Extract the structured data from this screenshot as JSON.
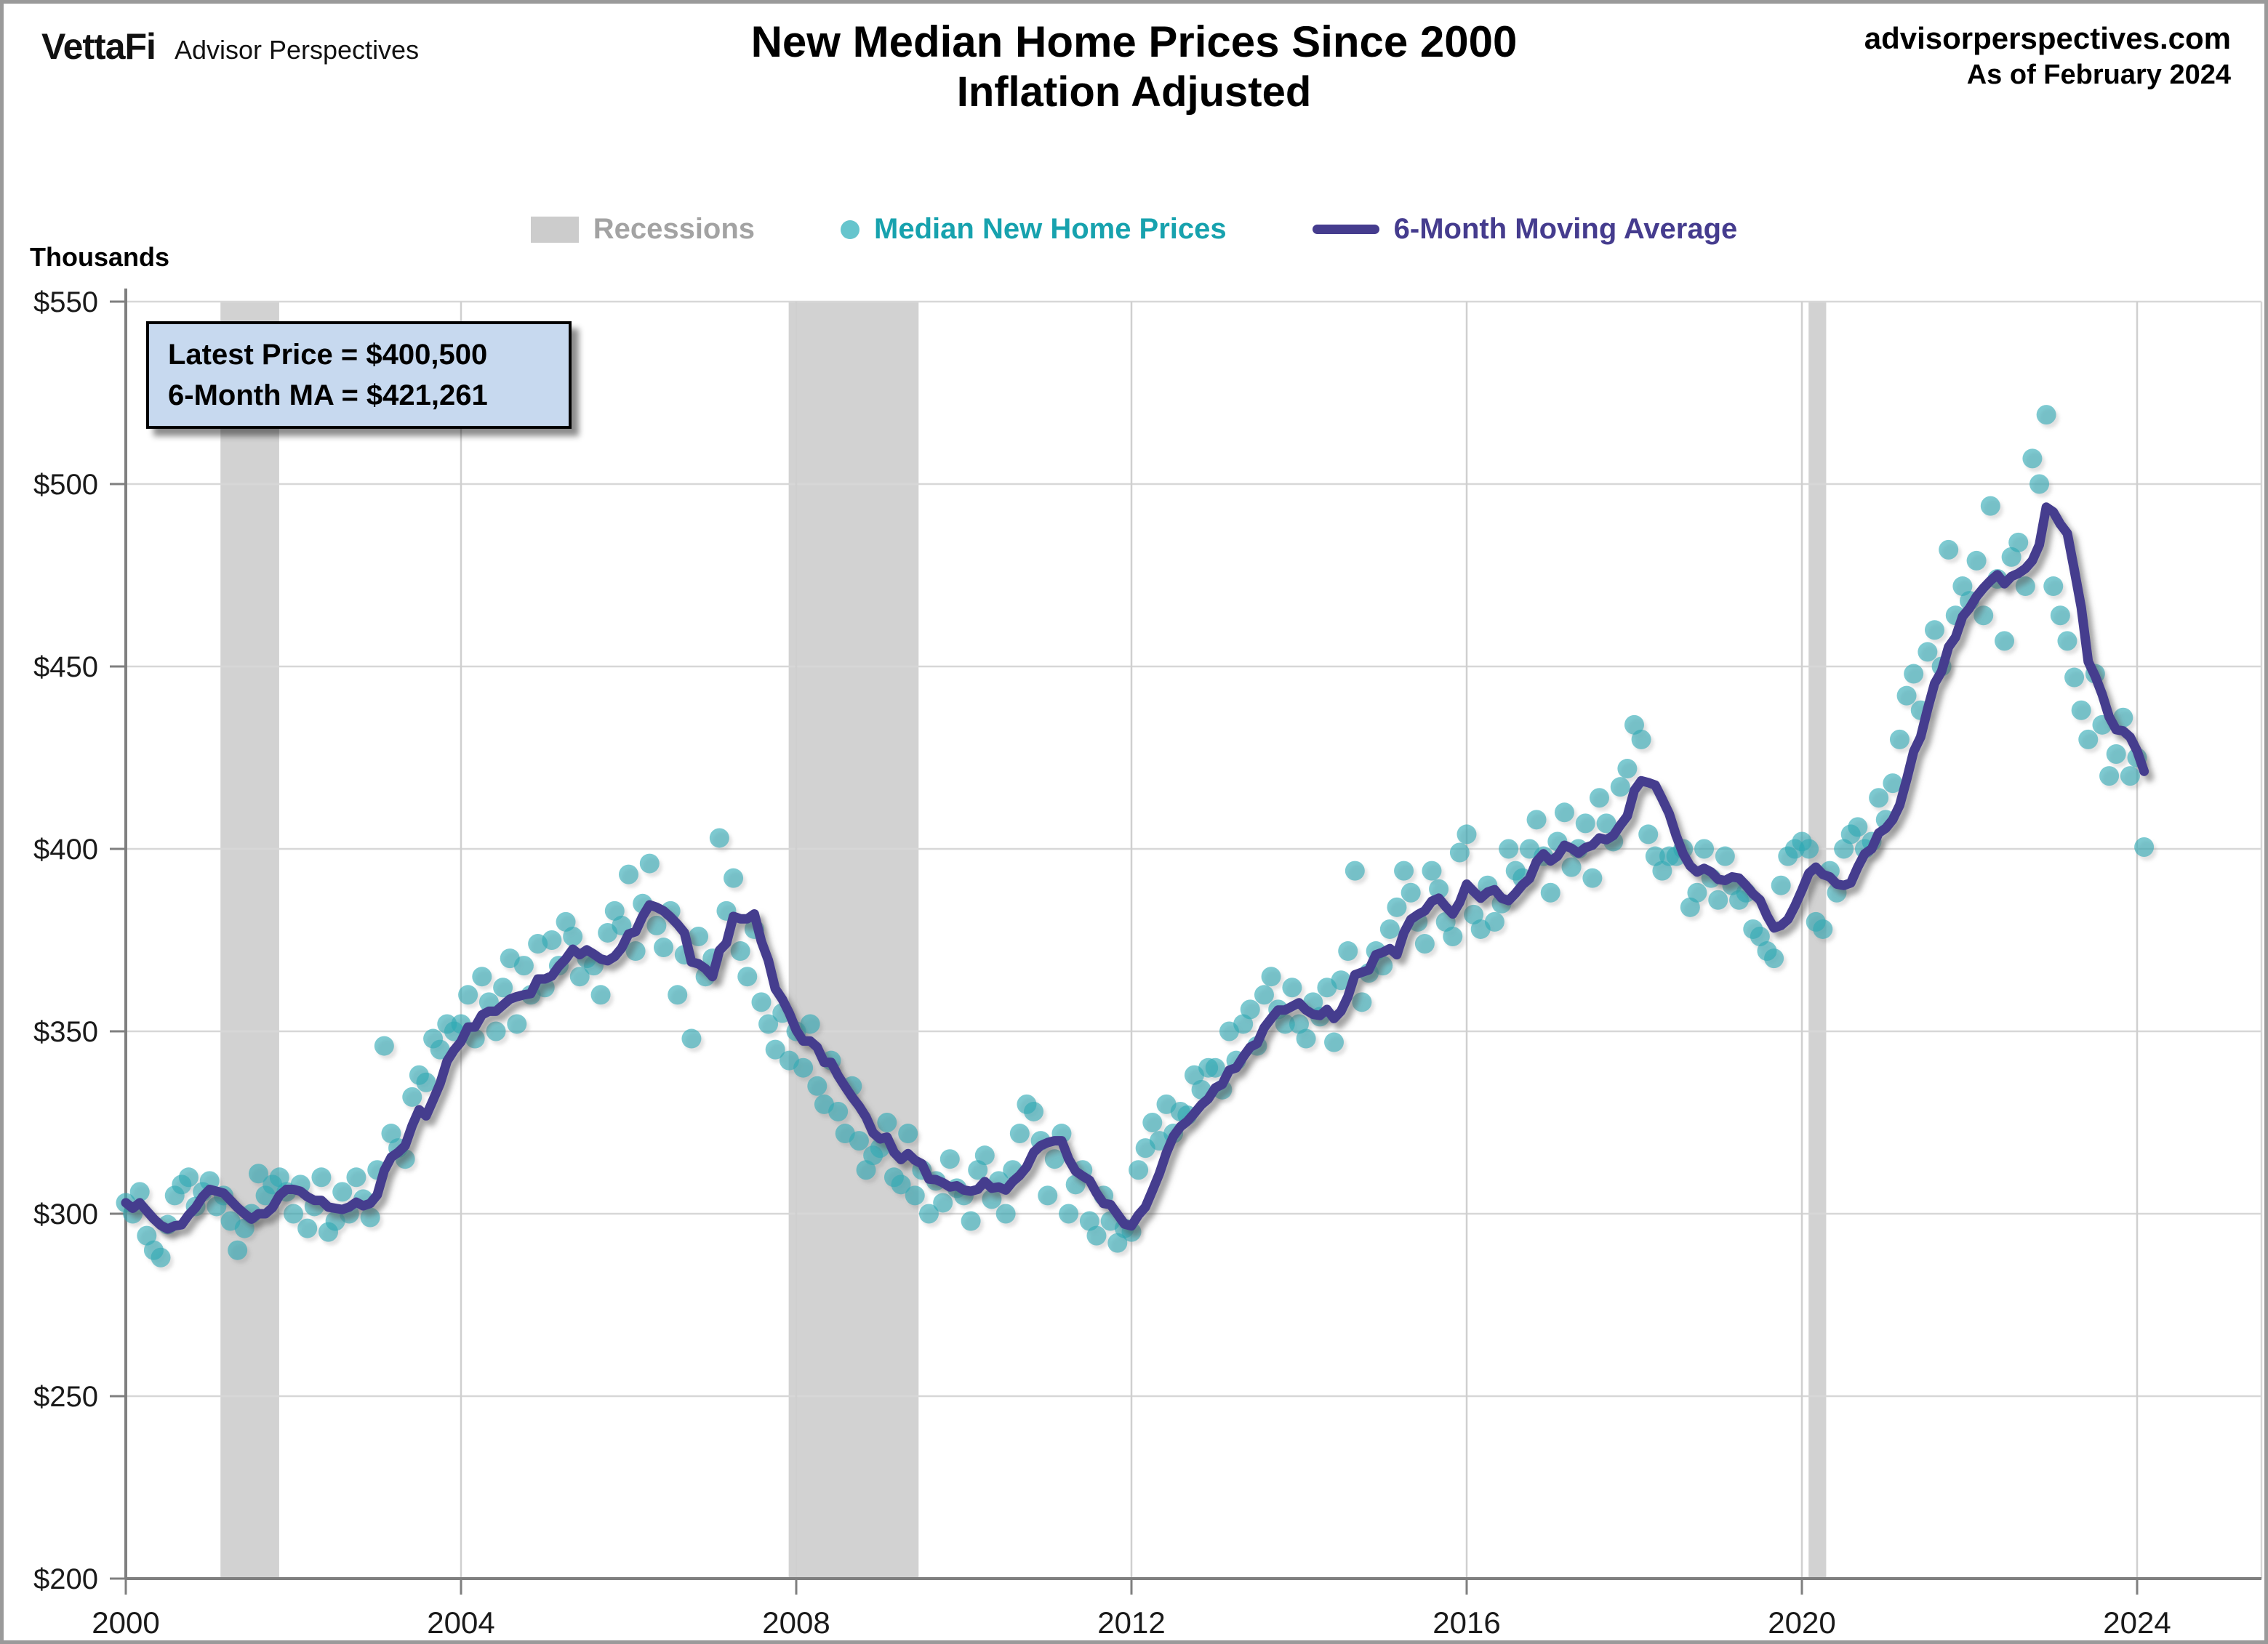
{
  "header": {
    "logo": {
      "brand": "VettaFi",
      "suffix": "Advisor Perspectives"
    },
    "title": {
      "line1": "New Median Home Prices Since 2000",
      "line2": "Inflation Adjusted"
    },
    "source": {
      "site": "advisorperspectives.com",
      "as_of": "As of February 2024"
    }
  },
  "legend": {
    "items": [
      {
        "label": "Recessions",
        "marker": "box",
        "marker_color": "#cccccc",
        "label_color": "#a3a3a3"
      },
      {
        "label": "Median New Home Prices",
        "marker": "dot",
        "marker_color": "#66c5cd",
        "label_color": "#17a2ae"
      },
      {
        "label": "6-Month Moving Average",
        "marker": "line",
        "marker_color": "#453c8e",
        "label_color": "#453c8e"
      }
    ]
  },
  "annotation": {
    "line1": "Latest Price = $400,500",
    "line2": "6-Month MA = $421,261"
  },
  "axes": {
    "y_title": "Thousands",
    "y_tick_values": [
      550,
      500,
      450,
      400,
      350,
      300,
      250,
      200
    ],
    "y_tick_labels": [
      "$550",
      "$500",
      "$450",
      "$400",
      "$350",
      "$300",
      "$250",
      "$200"
    ],
    "x_tick_values": [
      2000,
      2004,
      2008,
      2012,
      2016,
      2020,
      2024
    ],
    "x_tick_labels": [
      "2000",
      "2004",
      "2008",
      "2012",
      "2016",
      "2020",
      "2024"
    ]
  },
  "chart_data": {
    "type": "scatter",
    "title": "New Median Home Prices Since 2000 - Inflation Adjusted",
    "unit": "USD thousands, inflation adjusted",
    "frequency": "monthly",
    "x_start": {
      "year": 2000,
      "month": 1
    },
    "x_end": {
      "year": 2024,
      "month": 2
    },
    "xlim": [
      2000,
      2025.1
    ],
    "ylim": [
      200,
      550
    ],
    "grid": true,
    "legend_position": "top",
    "latest_price_thousands": 400.5,
    "latest_ma_thousands": 421.261,
    "series": [
      {
        "name": "Median New Home Prices",
        "style": "scatter",
        "color": "#2fa9b4",
        "values": [
          303,
          300,
          306,
          294,
          290,
          288,
          297,
          305,
          308,
          310,
          302,
          306,
          309,
          302,
          305,
          298,
          290,
          296,
          300,
          311,
          305,
          308,
          310,
          306,
          300,
          308,
          296,
          302,
          310,
          295,
          298,
          306,
          300,
          310,
          304,
          299,
          312,
          346,
          322,
          318,
          315,
          332,
          338,
          336,
          348,
          345,
          352,
          350,
          352,
          360,
          348,
          365,
          358,
          350,
          362,
          370,
          352,
          368,
          360,
          374,
          362,
          375,
          368,
          380,
          376,
          365,
          370,
          368,
          360,
          377,
          383,
          379,
          393,
          372,
          385,
          396,
          379,
          373,
          383,
          360,
          371,
          348,
          376,
          365,
          370,
          403,
          383,
          392,
          372,
          365,
          378,
          358,
          352,
          345,
          355,
          342,
          350,
          340,
          352,
          335,
          330,
          342,
          328,
          322,
          335,
          320,
          312,
          316,
          318,
          325,
          310,
          308,
          322,
          305,
          312,
          300,
          309,
          303,
          315,
          307,
          305,
          298,
          312,
          316,
          304,
          309,
          300,
          312,
          322,
          330,
          328,
          320,
          305,
          315,
          322,
          300,
          308,
          312,
          298,
          294,
          305,
          298,
          292,
          296,
          295,
          312,
          318,
          325,
          320,
          330,
          322,
          328,
          327,
          338,
          334,
          340,
          340,
          334,
          350,
          342,
          352,
          356,
          346,
          360,
          365,
          356,
          352,
          362,
          352,
          348,
          358,
          354,
          362,
          347,
          364,
          372,
          394,
          358,
          366,
          372,
          368,
          378,
          384,
          394,
          388,
          380,
          374,
          394,
          389,
          380,
          376,
          399,
          404,
          382,
          378,
          390,
          380,
          385,
          400,
          394,
          392,
          400,
          408,
          398,
          388,
          402,
          410,
          395,
          400,
          407,
          392,
          414,
          407,
          402,
          417,
          422,
          434,
          430,
          404,
          398,
          394,
          398,
          398,
          400,
          384,
          388,
          400,
          392,
          386,
          398,
          390,
          386,
          388,
          378,
          376,
          372,
          370,
          390,
          398,
          400,
          402,
          400,
          380,
          378,
          394,
          388,
          400,
          404,
          406,
          400,
          402,
          414,
          408,
          418,
          430,
          442,
          448,
          438,
          454,
          460,
          450,
          482,
          464,
          472,
          468,
          479,
          464,
          494,
          474,
          457,
          480,
          484,
          472,
          507,
          500,
          519,
          472,
          464,
          457,
          447,
          438,
          430,
          448,
          434,
          420,
          426,
          436,
          420,
          425,
          400.5
        ]
      },
      {
        "name": "6-Month Moving Average",
        "style": "line",
        "color": "#453c8e",
        "derived_from": "trailing 6-month mean of Median New Home Prices",
        "latest_value": 421.261
      }
    ],
    "recessions": [
      {
        "start": 2001.13,
        "end": 2001.83
      },
      {
        "start": 2007.91,
        "end": 2009.46
      },
      {
        "start": 2020.08,
        "end": 2020.29
      }
    ]
  }
}
